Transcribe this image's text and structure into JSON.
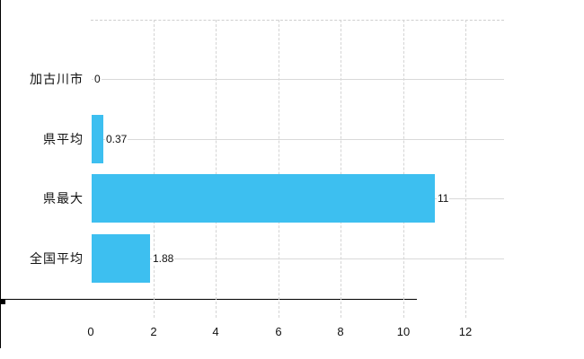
{
  "chart_data": {
    "type": "bar",
    "orientation": "horizontal",
    "title": "",
    "xlabel": "",
    "ylabel": "",
    "categories": [
      "加古川市",
      "県平均",
      "県最大",
      "全国平均"
    ],
    "values": [
      0,
      0.37,
      11,
      1.88
    ],
    "value_labels": [
      "0",
      "0.37",
      "11",
      "1.88"
    ],
    "x_tick_labels": [
      "0",
      "2",
      "4",
      "6",
      "8",
      "10",
      "12"
    ],
    "x_tick_values": [
      0,
      2,
      4,
      6,
      8,
      10,
      12
    ],
    "xlim": [
      0,
      13.2
    ],
    "grid": true,
    "legend_position": "none",
    "colors": {
      "bar": "#3dbff0",
      "h_grid": "#d9d9d9",
      "v_grid": "#d4d4d4",
      "axis": "#000000",
      "text": "#111111",
      "background": "#ffffff"
    }
  }
}
